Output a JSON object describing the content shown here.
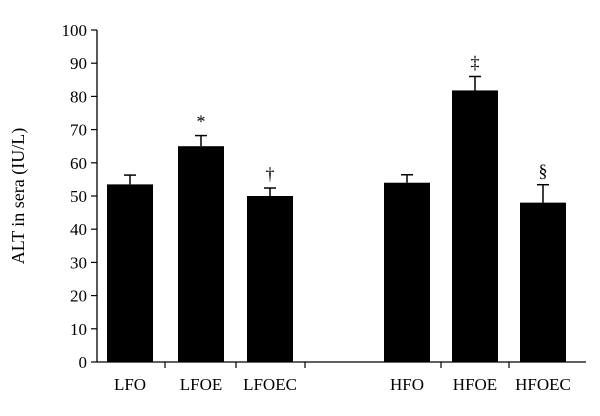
{
  "chart_data": {
    "type": "bar",
    "title": "",
    "xlabel": "",
    "ylabel": "ALT in sera (IU/L)",
    "ylim": [
      0,
      100
    ],
    "yticks": [
      0,
      10,
      20,
      30,
      40,
      50,
      60,
      70,
      80,
      90,
      100
    ],
    "categories": [
      "LFO",
      "LFOE",
      "LFOEC",
      "HFO",
      "HFOE",
      "HFOEC"
    ],
    "values": [
      53.5,
      65.0,
      50.0,
      54.0,
      81.8,
      48.0
    ],
    "errors": [
      2.8,
      3.2,
      2.4,
      2.4,
      4.2,
      5.4
    ],
    "significance": [
      "",
      "*",
      "†",
      "",
      "‡",
      "§"
    ],
    "bar_color": "#000000",
    "grid": false,
    "legend": "none"
  }
}
